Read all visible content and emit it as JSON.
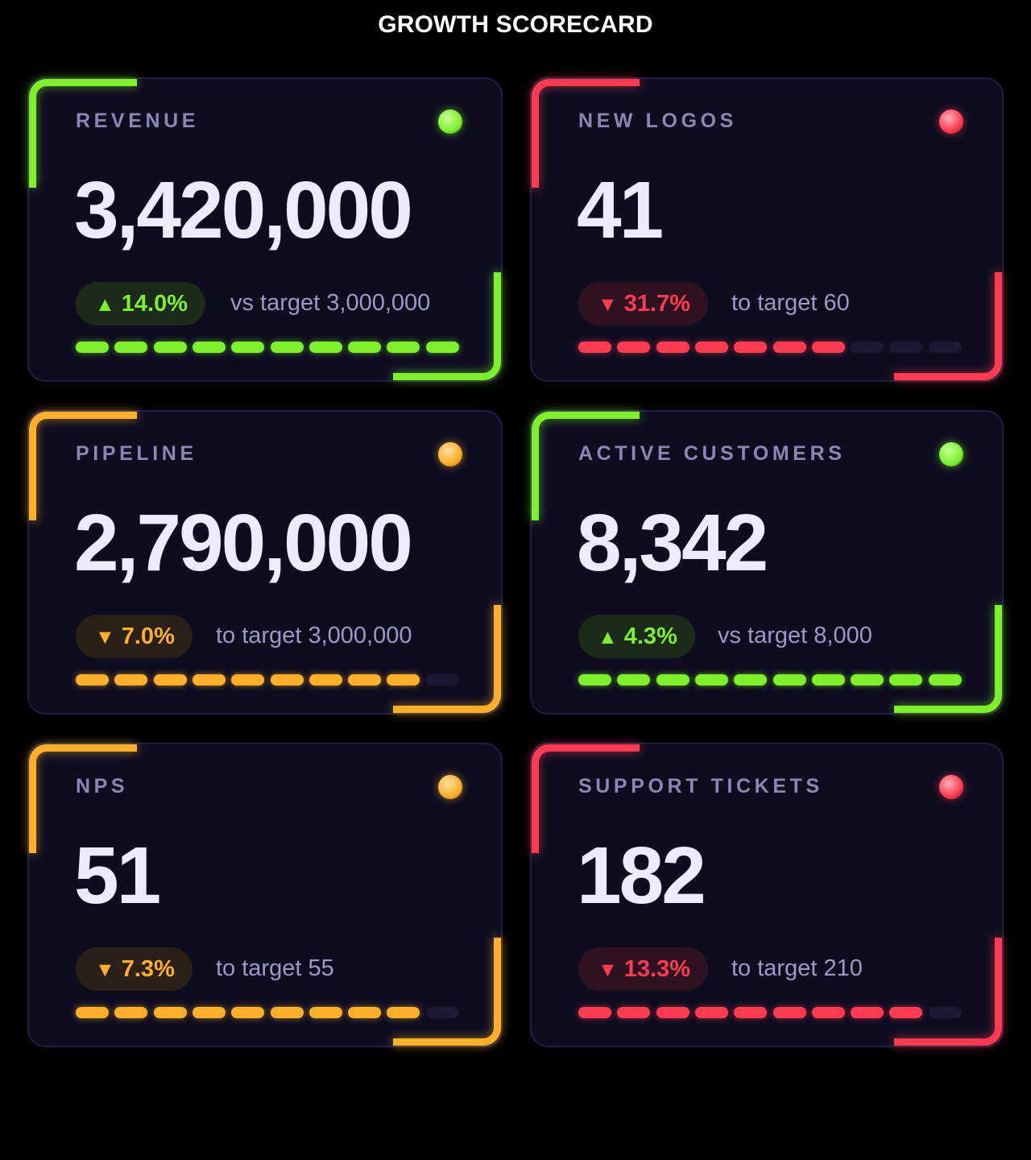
{
  "page_title": "GROWTH SCORECARD",
  "cards": [
    {
      "label": "REVENUE",
      "value": "3,420,000",
      "status": "good",
      "arrow": "▲",
      "change": "14.0%",
      "target_text": "vs target 3,000,000",
      "progress_segments_filled": 10,
      "progress_segments_total": 10,
      "accent": "#7ef02c",
      "badge_bg": "#1c2a1a"
    },
    {
      "label": "NEW LOGOS",
      "value": "41",
      "status": "bad",
      "arrow": "▼",
      "change": "31.7%",
      "target_text": "to target 60",
      "progress_segments_filled": 7,
      "progress_segments_total": 10,
      "accent": "#ff3b52",
      "badge_bg": "#2e1222"
    },
    {
      "label": "PIPELINE",
      "value": "2,790,000",
      "status": "warn",
      "arrow": "▼",
      "change": "7.0%",
      "target_text": "to target 3,000,000",
      "progress_segments_filled": 9,
      "progress_segments_total": 10,
      "accent": "#ffb02a",
      "badge_bg": "#2a2018"
    },
    {
      "label": "ACTIVE CUSTOMERS",
      "value": "8,342",
      "status": "good",
      "arrow": "▲",
      "change": "4.3%",
      "target_text": "vs target 8,000",
      "progress_segments_filled": 10,
      "progress_segments_total": 10,
      "accent": "#7ef02c",
      "badge_bg": "#1c2a1a"
    },
    {
      "label": "NPS",
      "value": "51",
      "status": "warn",
      "arrow": "▼",
      "change": "7.3%",
      "target_text": "to target 55",
      "progress_segments_filled": 9,
      "progress_segments_total": 10,
      "accent": "#ffb02a",
      "badge_bg": "#2a2018"
    },
    {
      "label": "SUPPORT TICKETS",
      "value": "182",
      "status": "bad",
      "arrow": "▼",
      "change": "13.3%",
      "target_text": "to target 210",
      "progress_segments_filled": 9,
      "progress_segments_total": 10,
      "accent": "#ff3b52",
      "badge_bg": "#2e1222"
    }
  ],
  "status_colors": {
    "good": "#7ef02c",
    "warn": "#ffb02a",
    "bad": "#ff3b52"
  }
}
